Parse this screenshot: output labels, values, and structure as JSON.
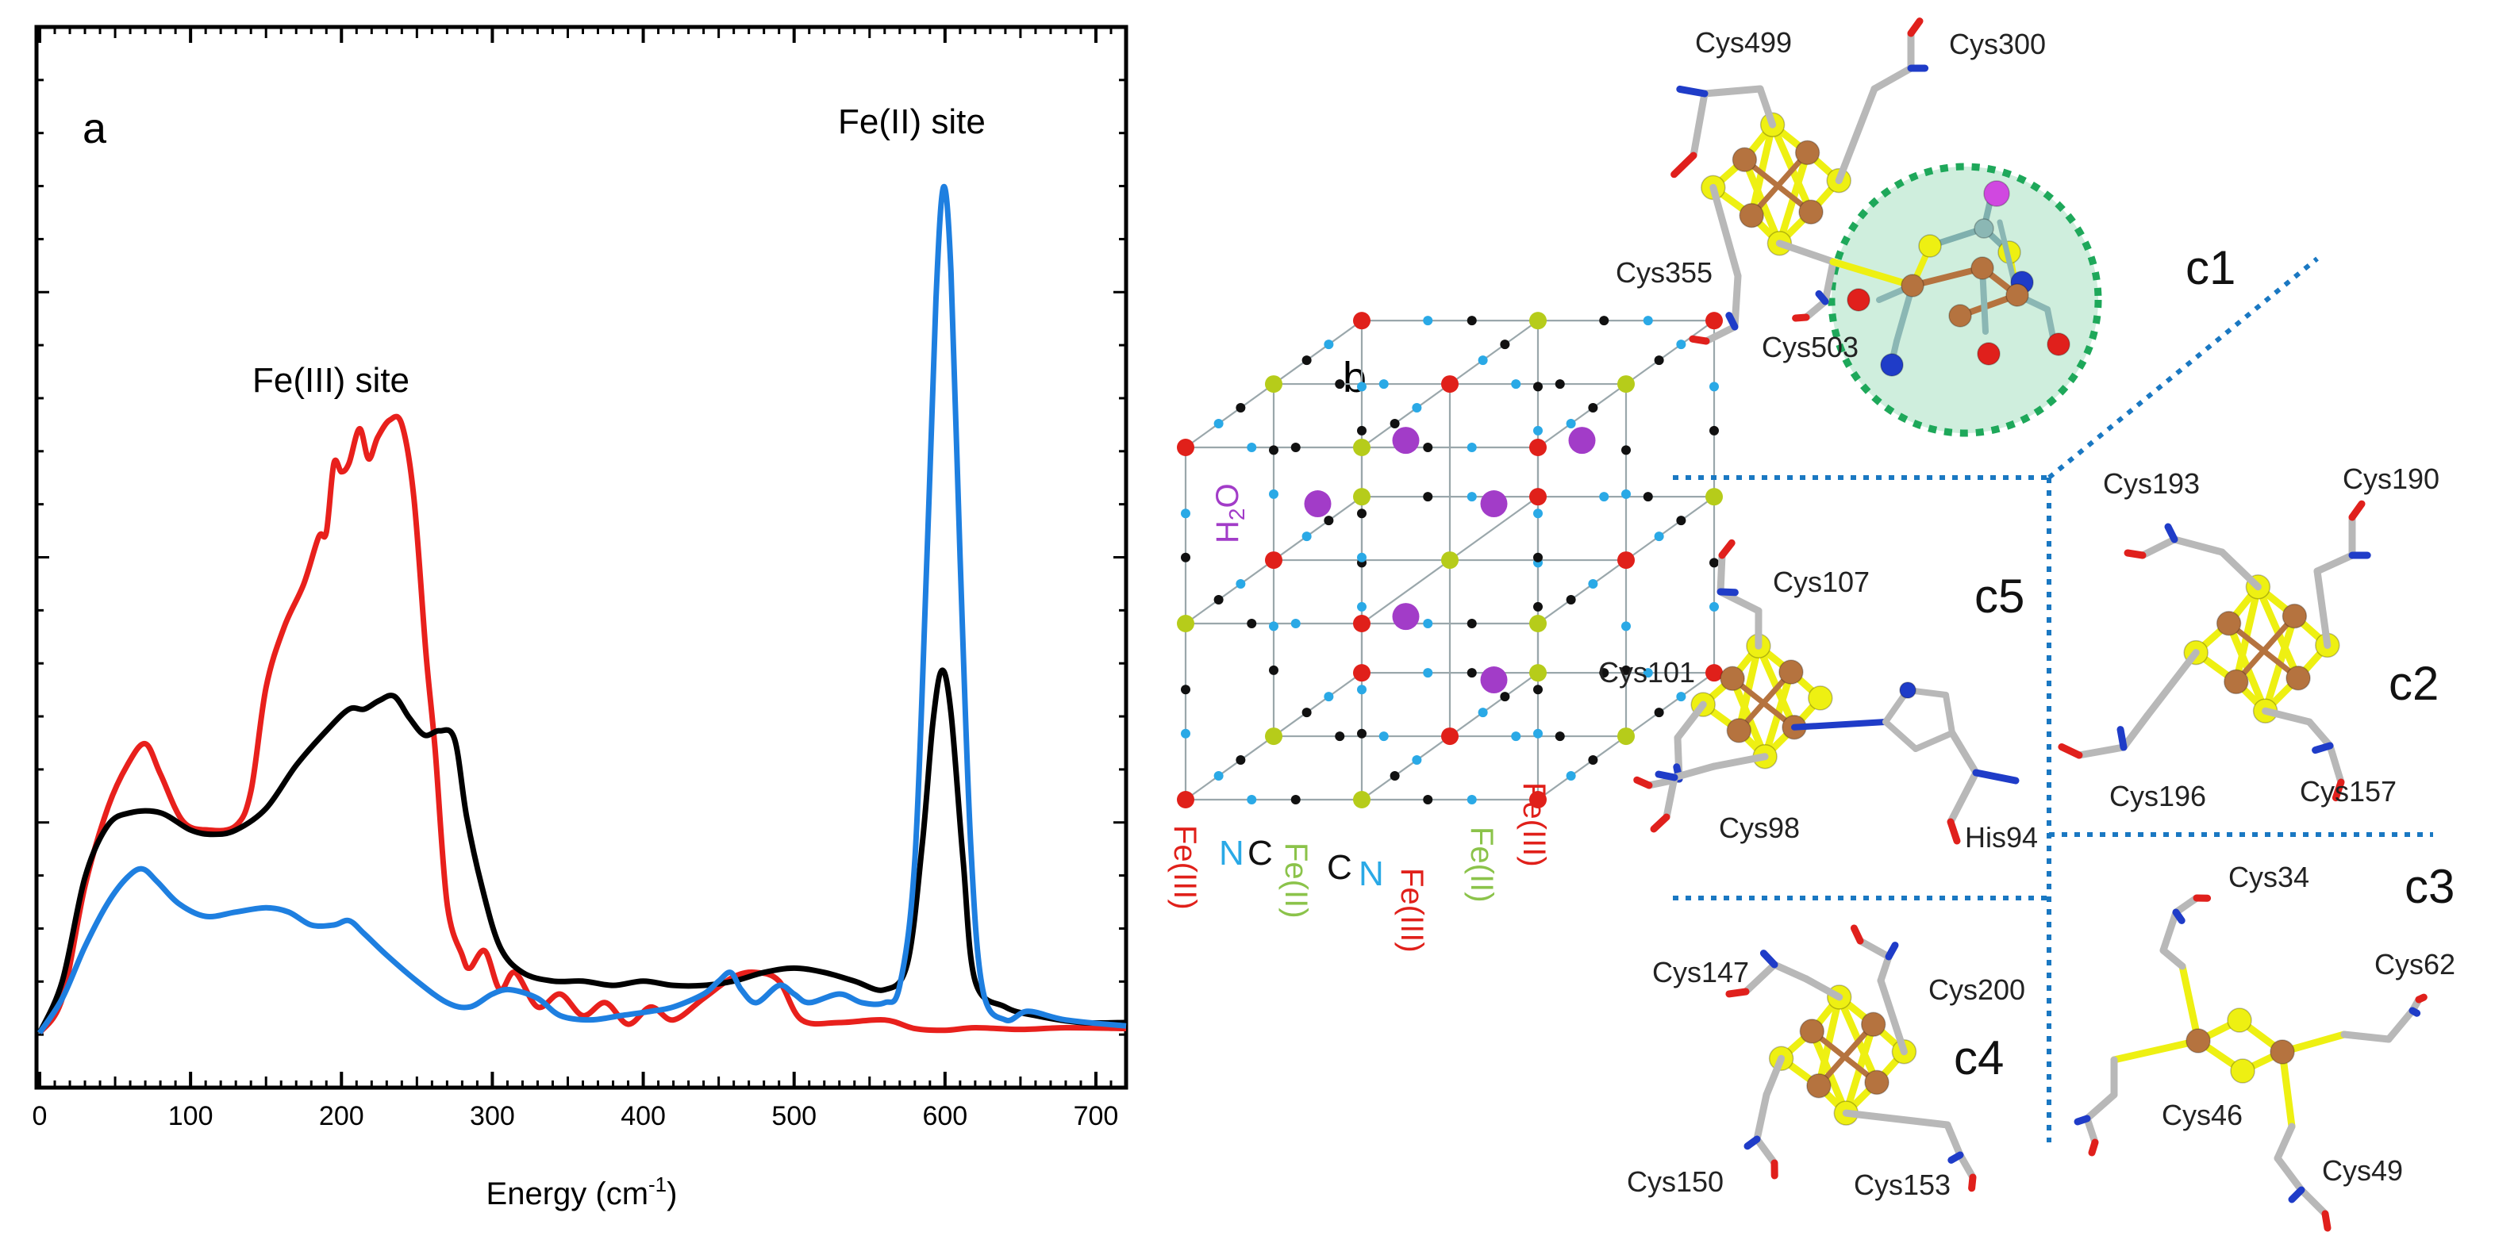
{
  "colors": {
    "red": "#e8201c",
    "black": "#000000",
    "blue": "#1e7fe0",
    "fe3": "#e0201a",
    "fe2": "#b6cc1a",
    "N": "#2aa9e6",
    "C": "#111111",
    "H2O": "#a23cc8",
    "cu": "#b5733f",
    "S": "#eef012",
    "pep": "#b8b8b8",
    "O": "#e0201c",
    "Nat": "#1f3cc8",
    "ring": "#1ea85a",
    "ringFill": "#cfeedd",
    "divider": "#1a78c2"
  },
  "panel_a": {
    "letter": "a",
    "fe3_label": "Fe(III) site",
    "fe2_label": "Fe(II) site",
    "xlabel_main": "Energy (cm",
    "xlabel_sup": "-1",
    "xlabel_end": ")"
  },
  "chart_data": {
    "type": "line",
    "title": "",
    "xlabel": "Energy (cm-1)",
    "ylabel": "",
    "xlim": [
      0,
      720
    ],
    "ylim": [
      0,
      1
    ],
    "x_ticks": [
      0,
      100,
      200,
      300,
      400,
      500,
      600,
      700
    ],
    "annotations": [
      "Fe(III) site",
      "Fe(II) site"
    ],
    "series": [
      {
        "name": "red",
        "color": "#e8201c",
        "points": [
          [
            0,
            0
          ],
          [
            15,
            0.04
          ],
          [
            30,
            0.17
          ],
          [
            45,
            0.26
          ],
          [
            58,
            0.31
          ],
          [
            70,
            0.335
          ],
          [
            80,
            0.3
          ],
          [
            95,
            0.245
          ],
          [
            112,
            0.235
          ],
          [
            130,
            0.24
          ],
          [
            140,
            0.28
          ],
          [
            150,
            0.4
          ],
          [
            162,
            0.47
          ],
          [
            175,
            0.52
          ],
          [
            185,
            0.575
          ],
          [
            190,
            0.58
          ],
          [
            195,
            0.66
          ],
          [
            200,
            0.65
          ],
          [
            205,
            0.66
          ],
          [
            212,
            0.7
          ],
          [
            218,
            0.665
          ],
          [
            224,
            0.69
          ],
          [
            232,
            0.71
          ],
          [
            240,
            0.705
          ],
          [
            248,
            0.62
          ],
          [
            256,
            0.44
          ],
          [
            262,
            0.33
          ],
          [
            270,
            0.15
          ],
          [
            280,
            0.09
          ],
          [
            285,
            0.075
          ],
          [
            295,
            0.095
          ],
          [
            305,
            0.05
          ],
          [
            315,
            0.07
          ],
          [
            330,
            0.03
          ],
          [
            345,
            0.045
          ],
          [
            360,
            0.02
          ],
          [
            375,
            0.035
          ],
          [
            390,
            0.01
          ],
          [
            405,
            0.03
          ],
          [
            420,
            0.015
          ],
          [
            440,
            0.04
          ],
          [
            460,
            0.065
          ],
          [
            475,
            0.07
          ],
          [
            490,
            0.06
          ],
          [
            505,
            0.015
          ],
          [
            530,
            0.012
          ],
          [
            560,
            0.015
          ],
          [
            580,
            0.005
          ],
          [
            600,
            0.003
          ],
          [
            620,
            0.006
          ],
          [
            650,
            0.004
          ],
          [
            680,
            0.006
          ],
          [
            720,
            0.005
          ]
        ]
      },
      {
        "name": "black",
        "color": "#000000",
        "points": [
          [
            0,
            0
          ],
          [
            15,
            0.06
          ],
          [
            30,
            0.18
          ],
          [
            45,
            0.24
          ],
          [
            60,
            0.255
          ],
          [
            80,
            0.255
          ],
          [
            100,
            0.235
          ],
          [
            115,
            0.23
          ],
          [
            130,
            0.235
          ],
          [
            150,
            0.26
          ],
          [
            170,
            0.31
          ],
          [
            190,
            0.35
          ],
          [
            205,
            0.375
          ],
          [
            215,
            0.375
          ],
          [
            225,
            0.385
          ],
          [
            235,
            0.39
          ],
          [
            245,
            0.365
          ],
          [
            255,
            0.345
          ],
          [
            265,
            0.35
          ],
          [
            275,
            0.34
          ],
          [
            283,
            0.25
          ],
          [
            293,
            0.17
          ],
          [
            305,
            0.1
          ],
          [
            320,
            0.07
          ],
          [
            340,
            0.06
          ],
          [
            360,
            0.06
          ],
          [
            380,
            0.055
          ],
          [
            400,
            0.06
          ],
          [
            420,
            0.055
          ],
          [
            440,
            0.055
          ],
          [
            460,
            0.06
          ],
          [
            480,
            0.07
          ],
          [
            500,
            0.075
          ],
          [
            520,
            0.07
          ],
          [
            540,
            0.06
          ],
          [
            560,
            0.05
          ],
          [
            575,
            0.08
          ],
          [
            585,
            0.22
          ],
          [
            592,
            0.36
          ],
          [
            598,
            0.42
          ],
          [
            604,
            0.37
          ],
          [
            612,
            0.2
          ],
          [
            620,
            0.06
          ],
          [
            640,
            0.03
          ],
          [
            660,
            0.02
          ],
          [
            690,
            0.012
          ],
          [
            720,
            0.012
          ]
        ]
      },
      {
        "name": "blue",
        "color": "#1e7fe0",
        "points": [
          [
            0,
            0
          ],
          [
            15,
            0.04
          ],
          [
            30,
            0.1
          ],
          [
            45,
            0.15
          ],
          [
            58,
            0.18
          ],
          [
            68,
            0.19
          ],
          [
            78,
            0.175
          ],
          [
            92,
            0.15
          ],
          [
            110,
            0.135
          ],
          [
            130,
            0.14
          ],
          [
            150,
            0.145
          ],
          [
            165,
            0.14
          ],
          [
            180,
            0.125
          ],
          [
            195,
            0.125
          ],
          [
            205,
            0.13
          ],
          [
            215,
            0.115
          ],
          [
            230,
            0.09
          ],
          [
            250,
            0.06
          ],
          [
            270,
            0.035
          ],
          [
            285,
            0.03
          ],
          [
            300,
            0.045
          ],
          [
            312,
            0.05
          ],
          [
            330,
            0.04
          ],
          [
            345,
            0.02
          ],
          [
            365,
            0.015
          ],
          [
            385,
            0.02
          ],
          [
            405,
            0.025
          ],
          [
            420,
            0.03
          ],
          [
            440,
            0.045
          ],
          [
            450,
            0.06
          ],
          [
            458,
            0.07
          ],
          [
            465,
            0.05
          ],
          [
            475,
            0.035
          ],
          [
            490,
            0.055
          ],
          [
            500,
            0.045
          ],
          [
            510,
            0.035
          ],
          [
            530,
            0.045
          ],
          [
            545,
            0.035
          ],
          [
            560,
            0.035
          ],
          [
            570,
            0.055
          ],
          [
            580,
            0.2
          ],
          [
            588,
            0.55
          ],
          [
            594,
            0.85
          ],
          [
            599,
            0.98
          ],
          [
            604,
            0.88
          ],
          [
            610,
            0.55
          ],
          [
            617,
            0.22
          ],
          [
            625,
            0.05
          ],
          [
            640,
            0.015
          ],
          [
            655,
            0.025
          ],
          [
            680,
            0.015
          ],
          [
            720,
            0.008
          ]
        ]
      }
    ]
  },
  "panel_b": {
    "letter": "b",
    "h2o": "H",
    "h2o_sub": "2",
    "h2o_end": "O",
    "labels": {
      "fe3_left": "Fe(III)",
      "n_left": "N",
      "c_left": "C",
      "fe2_left": "Fe(II)",
      "c_right": "C",
      "n_right": "N",
      "fe3_mid": "Fe(III)",
      "fe2_right": "Fe(II)",
      "fe3_right": "Fe(III)"
    }
  },
  "panel_c": {
    "c1": {
      "label": "c1",
      "cys": [
        "Cys499",
        "Cys300",
        "Cys355",
        "Cys503"
      ]
    },
    "c2": {
      "label": "c2",
      "cys": [
        "Cys193",
        "Cys190",
        "Cys196",
        "Cys157"
      ]
    },
    "c3": {
      "label": "c3",
      "cys": [
        "Cys34",
        "Cys62",
        "Cys46",
        "Cys49"
      ]
    },
    "c4": {
      "label": "c4",
      "cys": [
        "Cys147",
        "Cys200",
        "Cys150",
        "Cys153"
      ]
    },
    "c5": {
      "label": "c5",
      "cys": [
        "Cys107",
        "Cys101",
        "Cys98",
        "His94"
      ]
    }
  }
}
